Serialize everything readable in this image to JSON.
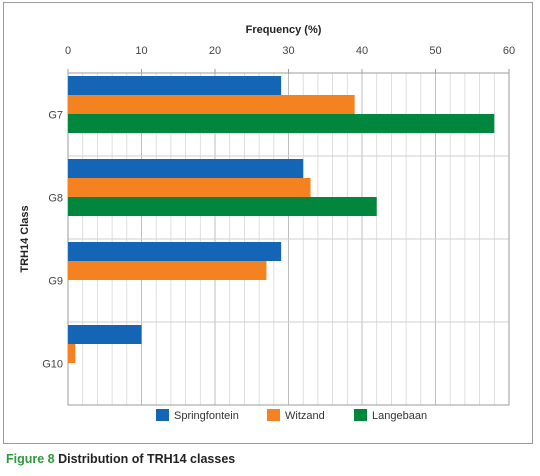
{
  "chart_data": {
    "type": "bar",
    "orientation": "horizontal",
    "categories": [
      "G7",
      "G8",
      "G9",
      "G10"
    ],
    "series": [
      {
        "name": "Springfontein",
        "color": "#1565b7",
        "values": [
          29,
          32,
          29,
          10
        ]
      },
      {
        "name": "Witzand",
        "color": "#f58220",
        "values": [
          39,
          33,
          27,
          1
        ]
      },
      {
        "name": "Langebaan",
        "color": "#00873d",
        "values": [
          58,
          42,
          null,
          null
        ]
      }
    ],
    "xlabel": "Frequency (%)",
    "ylabel": "TRH14 Class",
    "xlim": [
      0,
      60
    ],
    "xticks": [
      0,
      10,
      20,
      30,
      40,
      50,
      60
    ],
    "x_axis_position": "top",
    "grid": true,
    "legend_position": "bottom"
  },
  "caption": {
    "figure_label": "Figure 8",
    "text": "Distribution of TRH14 classes"
  }
}
